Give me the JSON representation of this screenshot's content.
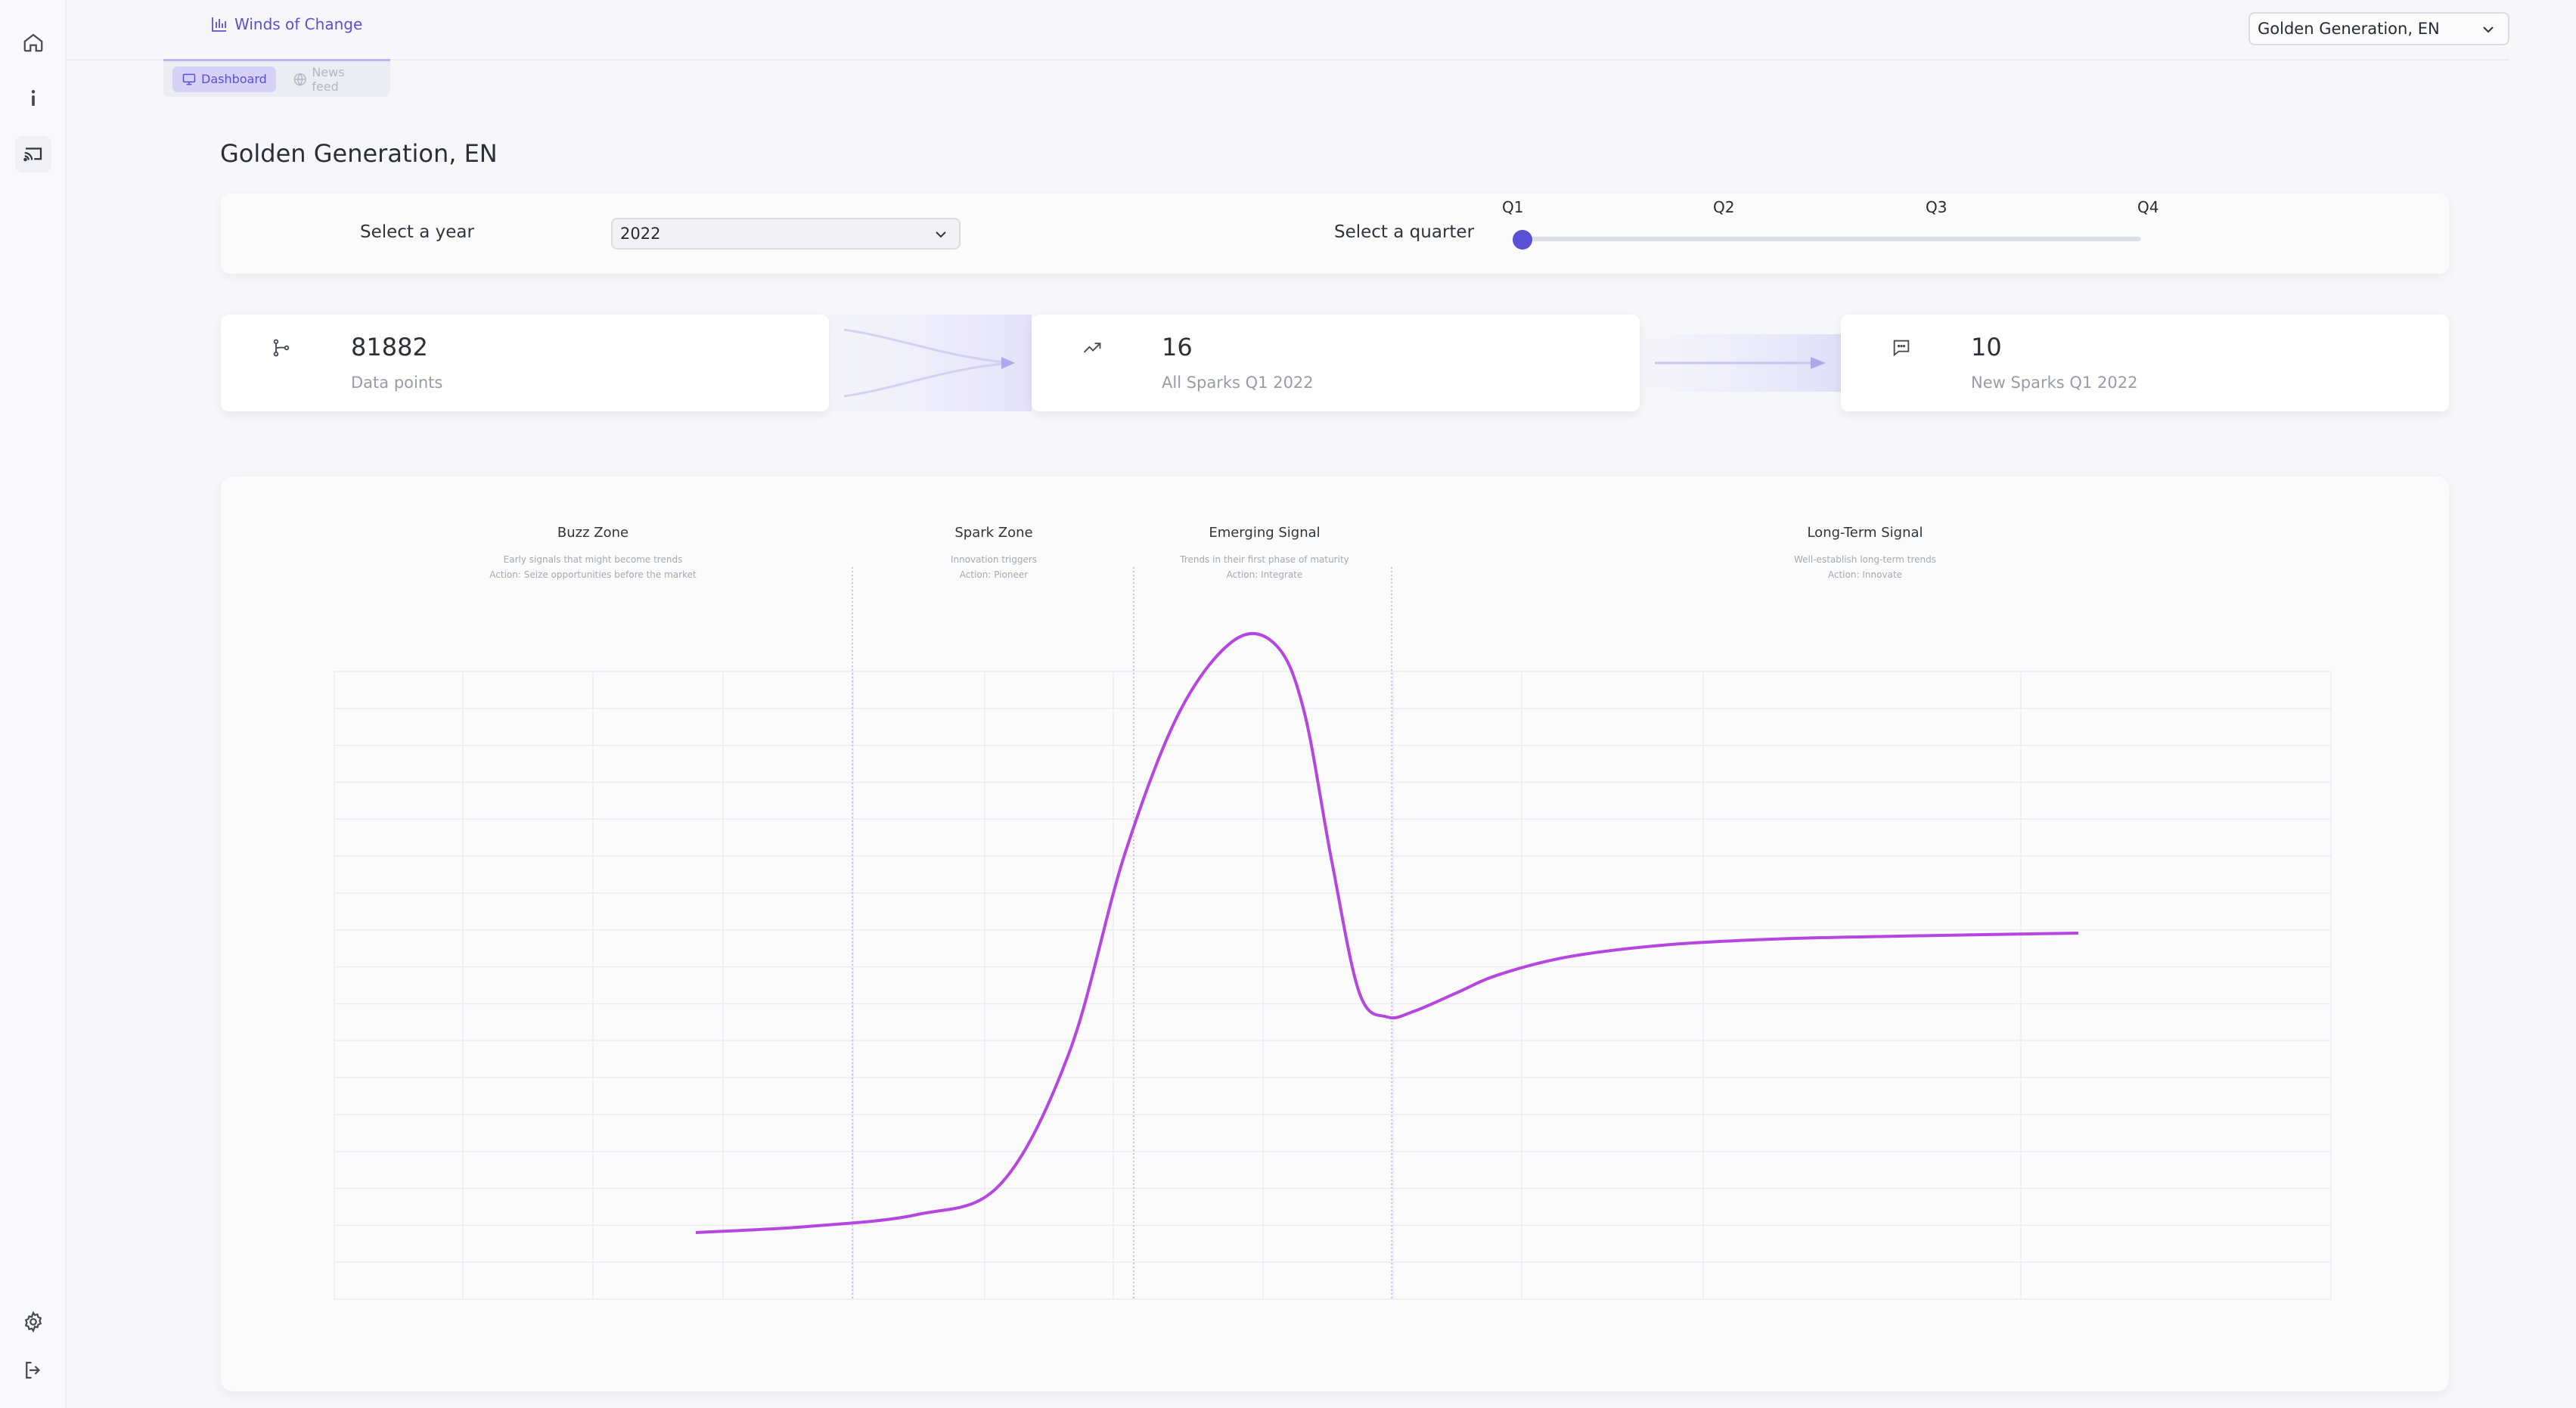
{
  "app": {
    "brand": "Winds of Change",
    "workspace_select": "Golden Generation, EN"
  },
  "tabs": [
    {
      "label": "Dashboard",
      "active": true,
      "icon": "monitor-icon"
    },
    {
      "label": "News feed",
      "active": false,
      "icon": "globe-icon"
    }
  ],
  "page": {
    "title": "Golden Generation, EN"
  },
  "filters": {
    "year_label": "Select a year",
    "year_value": "2022",
    "quarter_label": "Select a quarter",
    "quarters": [
      "Q1",
      "Q2",
      "Q3",
      "Q4"
    ],
    "selected_quarter_index": 0
  },
  "stats": [
    {
      "value": "81882",
      "label": "Data points",
      "icon": "git-branch-icon"
    },
    {
      "value": "16",
      "label": "All Sparks Q1 2022",
      "icon": "trending-up-icon"
    },
    {
      "value": "10",
      "label": "New Sparks Q1 2022",
      "icon": "message-icon"
    }
  ],
  "chart_data": {
    "type": "line",
    "title": "",
    "xlabel": "",
    "ylabel": "",
    "grid": true,
    "legend": "none",
    "series": [
      {
        "color": "#b546e0",
        "x": [
          0,
          0.08,
          0.16,
          0.22,
          0.27,
          0.31,
          0.35,
          0.39,
          0.42,
          0.44,
          0.46,
          0.48,
          0.5,
          0.52,
          0.55,
          0.58,
          0.63,
          0.7,
          0.78,
          0.87,
          1.0
        ],
        "y": [
          0.0,
          0.01,
          0.03,
          0.08,
          0.3,
          0.63,
          0.87,
          0.99,
          0.98,
          0.87,
          0.62,
          0.4,
          0.36,
          0.37,
          0.4,
          0.43,
          0.46,
          0.48,
          0.49,
          0.495,
          0.5
        ]
      }
    ],
    "zones": [
      {
        "name": "Buzz Zone",
        "desc1": "Early signals that might become trends",
        "desc2": "Action: Seize opportunities before the market"
      },
      {
        "name": "Spark Zone",
        "desc1": "Innovation triggers",
        "desc2": "Action: Pioneer"
      },
      {
        "name": "Emerging Signal",
        "desc1": "Trends in their first phase of maturity",
        "desc2": "Action: Integrate"
      },
      {
        "name": "Long-Term Signal",
        "desc1": "Well-establish long-term trends",
        "desc2": "Action: Innovate"
      }
    ]
  }
}
